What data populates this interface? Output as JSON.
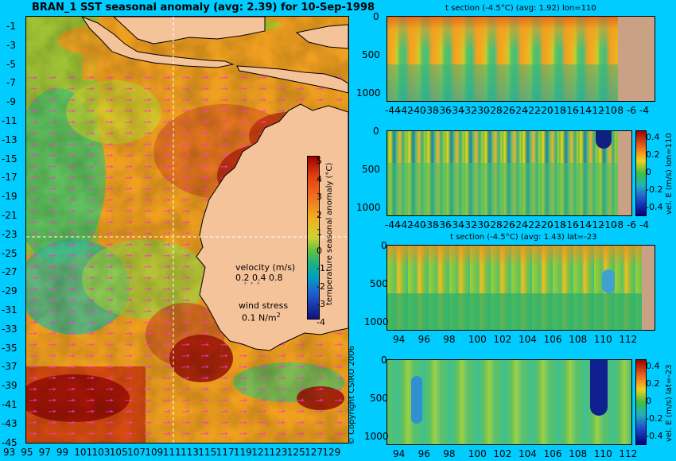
{
  "main_title": "BRAN_1  SST seasonal anomaly  (avg: 2.39) for 10-Sep-1998",
  "colors": {
    "background": "#00ccff",
    "land": "#f5c39a",
    "ocean_land_section": "#c9a285"
  },
  "legend": {
    "velocity_label": "velocity (m/s)",
    "velocity_scale": "0.2 0.4 0.8",
    "wind_label": "wind stress",
    "wind_value": "0.1 N/m",
    "wind_exp": "2"
  },
  "copyright": "© Copyright CSIRO 2006",
  "chart_data": [
    {
      "type": "heatmap",
      "title": "BRAN_1  SST seasonal anomaly  (avg: 2.39) for 10-Sep-1998",
      "x_tick_labels": [
        "93",
        "95",
        "97",
        "99",
        "101",
        "103",
        "105",
        "107",
        "109",
        "111",
        "113",
        "115",
        "117",
        "119",
        "121",
        "123",
        "125",
        "127",
        "129"
      ],
      "y_tick_labels": [
        "-1",
        "-3",
        "-5",
        "-7",
        "-9",
        "-11",
        "-13",
        "-15",
        "-17",
        "-19",
        "-21",
        "-23",
        "-25",
        "-27",
        "-29",
        "-31",
        "-33",
        "-35",
        "-37",
        "-39",
        "-41",
        "-43",
        "-45"
      ],
      "xlim": [
        93,
        130
      ],
      "ylim": [
        -45,
        0
      ],
      "colorbar": {
        "label": "temperature seasonal anomaly (°C)",
        "ticks": [
          "5",
          "4",
          "3",
          "2",
          "1",
          "0",
          "-1",
          "-2",
          "-3",
          "-4"
        ],
        "range": [
          -4,
          5
        ]
      },
      "crosshair": {
        "lon": 110,
        "lat": -23
      }
    },
    {
      "type": "heatmap",
      "title": "t section (-4.5°C) (avg: 1.92) lon=110",
      "x_tick_labels": [
        "-44",
        "-42",
        "-40",
        "-38",
        "-36",
        "-34",
        "-32",
        "-30",
        "-28",
        "-26",
        "-24",
        "-22",
        "-20",
        "-18",
        "-16",
        "-14",
        "-12",
        "-10",
        "-8",
        "-6",
        "-4"
      ],
      "y_tick_labels": [
        "0",
        "500",
        "1000"
      ],
      "xlim": [
        -45,
        -3
      ],
      "ylim": [
        1000,
        0
      ]
    },
    {
      "type": "heatmap",
      "x_tick_labels": [
        "-44",
        "-42",
        "-40",
        "-38",
        "-36",
        "-34",
        "-32",
        "-30",
        "-28",
        "-26",
        "-24",
        "-22",
        "-20",
        "-18",
        "-16",
        "-14",
        "-12",
        "-10",
        "-8",
        "-6",
        "-4"
      ],
      "y_tick_labels": [
        "0",
        "500",
        "1000"
      ],
      "xlim": [
        -45,
        -3
      ],
      "ylim": [
        1000,
        0
      ],
      "colorbar": {
        "label": "vel. E (m/s) lon=110",
        "ticks": [
          "0.4",
          "0.2",
          "0",
          "-0.2",
          "-0.4"
        ],
        "range": [
          -0.45,
          0.45
        ]
      }
    },
    {
      "type": "heatmap",
      "title": "t section (-4.5°C) (avg: 1.43) lat=-23",
      "x_tick_labels": [
        "94",
        "96",
        "98",
        "100",
        "102",
        "104",
        "106",
        "108",
        "110",
        "112"
      ],
      "y_tick_labels": [
        "0",
        "500",
        "1000"
      ],
      "xlim": [
        93,
        114
      ],
      "ylim": [
        1000,
        0
      ]
    },
    {
      "type": "heatmap",
      "x_tick_labels": [
        "94",
        "96",
        "98",
        "100",
        "102",
        "104",
        "106",
        "108",
        "110",
        "112"
      ],
      "y_tick_labels": [
        "0",
        "500",
        "1000"
      ],
      "xlim": [
        93,
        114
      ],
      "ylim": [
        1000,
        0
      ],
      "colorbar": {
        "label": "vel. E (m/s) lat=-23",
        "ticks": [
          "0.4",
          "0.2",
          "0",
          "-0.2",
          "-0.4"
        ],
        "range": [
          -0.45,
          0.45
        ]
      }
    }
  ]
}
